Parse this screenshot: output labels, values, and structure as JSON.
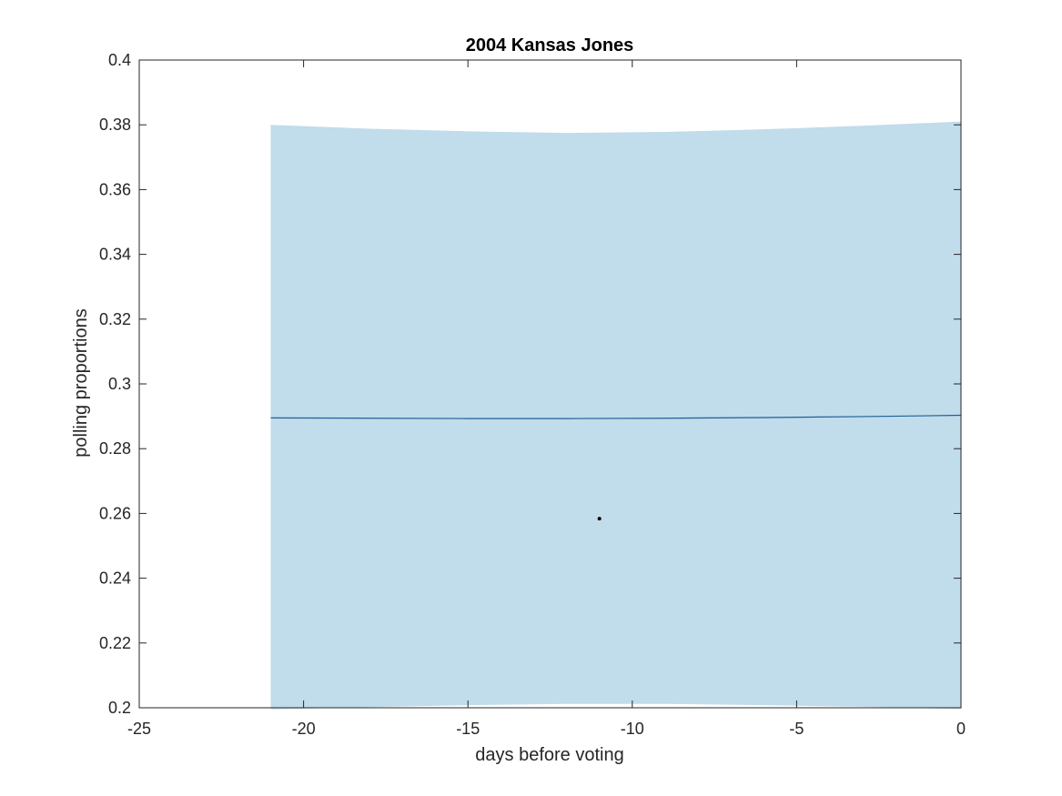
{
  "chart_data": {
    "type": "line",
    "title": "2004 Kansas Jones",
    "xlabel": "days before voting",
    "ylabel": "polling proportions",
    "xlim": [
      -25,
      0
    ],
    "ylim": [
      0.2,
      0.4
    ],
    "x_ticks": [
      -25,
      -20,
      -15,
      -10,
      -5,
      0
    ],
    "y_ticks": [
      0.2,
      0.22,
      0.24,
      0.26,
      0.28,
      0.3,
      0.32,
      0.34,
      0.36,
      0.38,
      0.4
    ],
    "x_tick_labels": [
      "-25",
      "-20",
      "-15",
      "-10",
      "-5",
      "0"
    ],
    "y_tick_labels": [
      "0.2",
      "0.22",
      "0.24",
      "0.26",
      "0.28",
      "0.3",
      "0.32",
      "0.34",
      "0.36",
      "0.38",
      "0.4"
    ],
    "grid": false,
    "band": {
      "x": [
        -21,
        -18,
        -15,
        -12,
        -9,
        -6,
        -3,
        0
      ],
      "upper": [
        0.38,
        0.3788,
        0.378,
        0.3775,
        0.3778,
        0.3786,
        0.3797,
        0.381
      ],
      "lower": [
        0.1995,
        0.2002,
        0.2008,
        0.2012,
        0.2012,
        0.2008,
        0.2003,
        0.1996
      ],
      "color": "#c1dcea"
    },
    "series": [
      {
        "x": [
          -21,
          -18,
          -15,
          -12,
          -9,
          -6,
          -3,
          0
        ],
        "values": [
          0.2895,
          0.2894,
          0.2893,
          0.2893,
          0.2894,
          0.2896,
          0.2899,
          0.2903
        ],
        "color": "#1f5f99"
      }
    ],
    "points": [
      {
        "x": -11,
        "y": 0.2584,
        "color": "#000000"
      }
    ]
  }
}
